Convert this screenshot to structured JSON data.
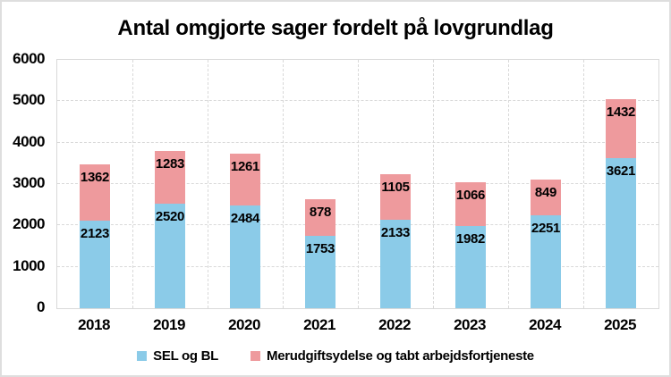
{
  "title": "Antal omgjorte sager fordelt på lovgrundlag",
  "chart_data": {
    "type": "bar",
    "stacked": true,
    "title": "Antal omgjorte sager fordelt på lovgrundlag",
    "categories": [
      "2018",
      "2019",
      "2020",
      "2021",
      "2022",
      "2023",
      "2024",
      "2025"
    ],
    "series": [
      {
        "name": "SEL og BL",
        "color": "#8BCBE8",
        "values": [
          2123,
          2520,
          2484,
          1753,
          2133,
          1982,
          2251,
          3621
        ]
      },
      {
        "name": "Merudgiftsydelse og tabt arbejdsfortjeneste",
        "color": "#EE9A9D",
        "values": [
          1362,
          1283,
          1261,
          878,
          1105,
          1066,
          849,
          1432
        ]
      }
    ],
    "ylim": [
      0,
      6000
    ],
    "yticks": [
      0,
      1000,
      2000,
      3000,
      4000,
      5000,
      6000
    ],
    "xlabel": "",
    "ylabel": "",
    "grid": "horizontal-and-vertical-dashed",
    "gridline_color": "#D9D9D9",
    "data_labels": "inside-end",
    "data_label_color": "#000000",
    "legend_position": "bottom"
  }
}
